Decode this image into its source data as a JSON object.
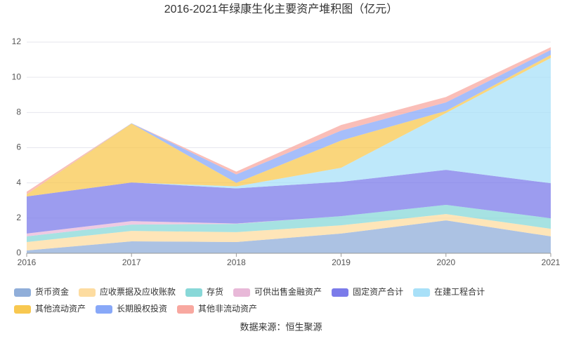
{
  "chart_data": {
    "type": "stacked-area",
    "title": "2016-2021年绿康生化主要资产堆积图（亿元）",
    "source": "数据来源：恒生聚源",
    "x": [
      2016,
      2017,
      2018,
      2019,
      2020,
      2021
    ],
    "xlim": [
      2016,
      2021
    ],
    "xticks": [
      2016,
      2017,
      2018,
      2019,
      2020,
      2021
    ],
    "ylim": [
      0,
      12
    ],
    "yticks": [
      0,
      2,
      4,
      6,
      8,
      10,
      12
    ],
    "grid": true,
    "series": [
      {
        "name": "货币资金",
        "color": "#90aed9",
        "values": [
          0.16,
          0.68,
          0.64,
          1.12,
          1.87,
          0.96
        ]
      },
      {
        "name": "应收票据及应收账款",
        "color": "#fddca0",
        "values": [
          0.48,
          0.59,
          0.56,
          0.47,
          0.36,
          0.43
        ]
      },
      {
        "name": "存货",
        "color": "#88d8d8",
        "values": [
          0.32,
          0.36,
          0.47,
          0.52,
          0.52,
          0.6
        ]
      },
      {
        "name": "可供出售金融资产",
        "color": "#e8b8d8",
        "values": [
          0.16,
          0.2,
          0.02,
          0,
          0,
          0
        ]
      },
      {
        "name": "固定资产合计",
        "color": "#7b7bea",
        "values": [
          2.11,
          2.19,
          2.0,
          1.95,
          1.99,
          1.99
        ]
      },
      {
        "name": "在建工程合计",
        "color": "#a8e0f8",
        "values": [
          0,
          0,
          0.11,
          0.8,
          3.23,
          7.12
        ]
      },
      {
        "name": "其他流动资产",
        "color": "#f8c850",
        "values": [
          0.12,
          3.35,
          0.2,
          1.55,
          0.12,
          0.17
        ]
      },
      {
        "name": "长期股权投资",
        "color": "#88a8f8",
        "values": [
          0,
          0.02,
          0.48,
          0.56,
          0.48,
          0.28
        ]
      },
      {
        "name": "其他非流动资产",
        "color": "#f8a8a0",
        "values": [
          0.15,
          0,
          0.16,
          0.32,
          0.31,
          0.16
        ]
      }
    ]
  }
}
